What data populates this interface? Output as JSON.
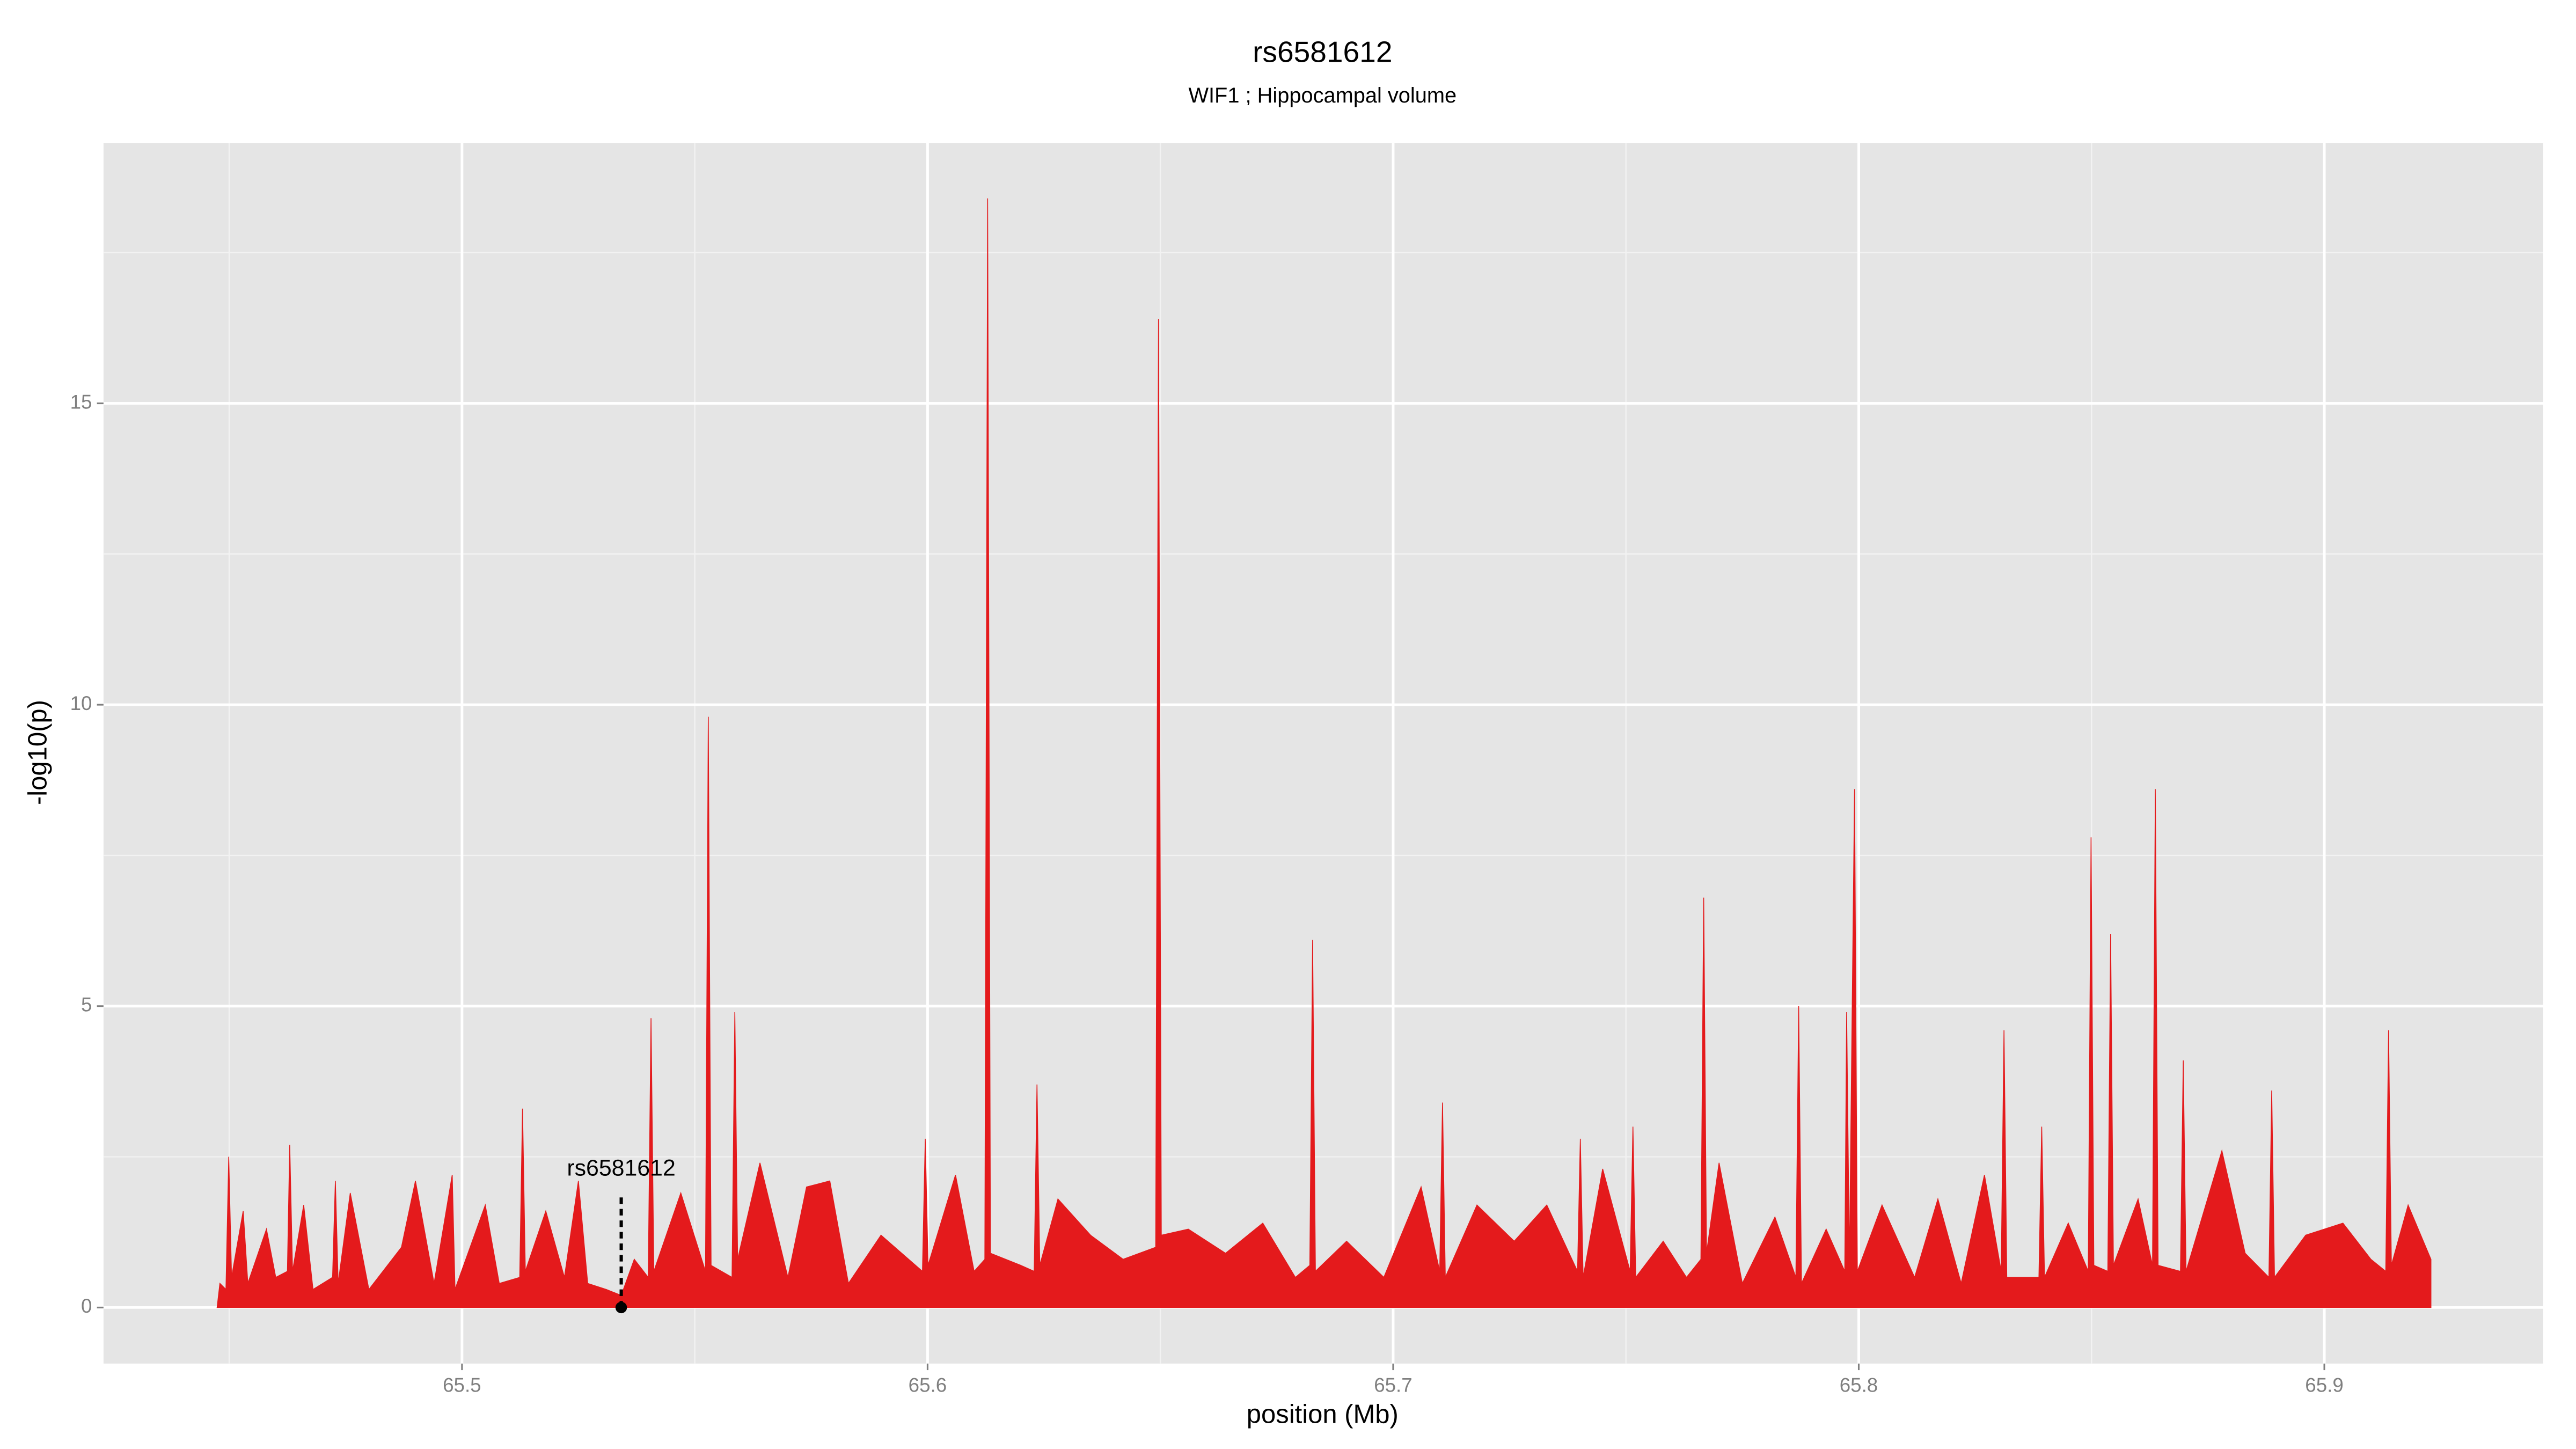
{
  "chart_data": {
    "type": "area",
    "title": "rs6581612",
    "subtitle": "WIF1 ; Hippocampal volume",
    "xlabel": "position (Mb)",
    "ylabel": "-log10(p)",
    "xlim": [
      65.423,
      65.947
    ],
    "ylim": [
      -0.93,
      19.32
    ],
    "xticks": [
      65.5,
      65.6,
      65.7,
      65.8,
      65.9
    ],
    "yticks": [
      0,
      5,
      10,
      15
    ],
    "xminor": [
      65.45,
      65.55,
      65.65,
      65.75,
      65.85
    ],
    "yminor": [
      2.5,
      7.5,
      12.5,
      17.5
    ],
    "grid": true,
    "annotation": {
      "label": "rs6581612",
      "x": 65.5342,
      "y": 0
    },
    "x": [
      65.4474,
      65.448,
      65.4493,
      65.4499,
      65.4505,
      65.453,
      65.454,
      65.458,
      65.46,
      65.4625,
      65.463,
      65.4636,
      65.466,
      65.468,
      65.4722,
      65.4728,
      65.4734,
      65.476,
      65.48,
      65.487,
      65.49,
      65.494,
      65.4979,
      65.4985,
      65.505,
      65.508,
      65.5124,
      65.513,
      65.5136,
      65.518,
      65.522,
      65.525,
      65.527,
      65.531,
      65.5342,
      65.537,
      65.54,
      65.5406,
      65.5412,
      65.547,
      65.5523,
      65.5529,
      65.5535,
      65.558,
      65.5586,
      65.5592,
      65.564,
      65.57,
      65.574,
      65.579,
      65.583,
      65.59,
      65.5989,
      65.5995,
      65.6001,
      65.606,
      65.61,
      65.6123,
      65.6129,
      65.6135,
      65.62,
      65.6229,
      65.6235,
      65.6241,
      65.628,
      65.635,
      65.642,
      65.649,
      65.6496,
      65.6502,
      65.656,
      65.664,
      65.672,
      65.679,
      65.6821,
      65.6827,
      65.6833,
      65.69,
      65.698,
      65.706,
      65.71,
      65.7106,
      65.7112,
      65.718,
      65.726,
      65.733,
      65.7396,
      65.7402,
      65.7408,
      65.745,
      65.7509,
      65.7515,
      65.7521,
      65.758,
      65.763,
      65.7661,
      65.7667,
      65.7673,
      65.77,
      65.775,
      65.782,
      65.7865,
      65.7871,
      65.7877,
      65.793,
      65.797,
      65.7974,
      65.798,
      65.7991,
      65.7997,
      65.805,
      65.812,
      65.817,
      65.822,
      65.827,
      65.8306,
      65.8312,
      65.8318,
      65.8387,
      65.8393,
      65.8399,
      65.845,
      65.8493,
      65.8499,
      65.8505,
      65.8535,
      65.8541,
      65.8547,
      65.86,
      65.8631,
      65.8637,
      65.8643,
      65.8691,
      65.8697,
      65.8703,
      65.878,
      65.883,
      65.8881,
      65.8887,
      65.8893,
      65.896,
      65.904,
      65.91,
      65.9132,
      65.9138,
      65.9144,
      65.918,
      65.9229
    ],
    "series": [
      {
        "color": "#e41a1c",
        "values": [
          0,
          0.4,
          0.3,
          2.5,
          0.5,
          1.6,
          0.4,
          1.3,
          0.5,
          0.6,
          2.7,
          0.6,
          1.7,
          0.3,
          0.5,
          2.1,
          0.4,
          1.9,
          0.3,
          1.0,
          2.1,
          0.4,
          2.2,
          0.3,
          1.7,
          0.4,
          0.5,
          3.3,
          0.6,
          1.6,
          0.5,
          2.1,
          0.4,
          0.3,
          0.2,
          0.8,
          0.5,
          4.8,
          0.6,
          1.9,
          0.6,
          9.8,
          0.7,
          0.5,
          4.9,
          0.8,
          2.4,
          0.5,
          2.0,
          2.1,
          0.4,
          1.2,
          0.6,
          2.8,
          0.7,
          2.2,
          0.6,
          0.8,
          18.4,
          0.9,
          0.7,
          0.6,
          3.7,
          0.7,
          1.8,
          1.2,
          0.8,
          1.0,
          16.4,
          1.2,
          1.3,
          0.9,
          1.4,
          0.5,
          0.7,
          6.1,
          0.6,
          1.1,
          0.5,
          2.0,
          0.6,
          3.4,
          0.5,
          1.7,
          1.1,
          1.7,
          0.6,
          2.8,
          0.5,
          2.3,
          0.6,
          3.0,
          0.5,
          1.1,
          0.5,
          0.8,
          6.8,
          0.9,
          2.4,
          0.4,
          1.5,
          0.5,
          5.0,
          0.4,
          1.3,
          0.6,
          4.9,
          0.7,
          8.6,
          0.6,
          1.7,
          0.5,
          1.8,
          0.4,
          2.2,
          0.6,
          4.6,
          0.5,
          0.5,
          3.0,
          0.5,
          1.4,
          0.6,
          7.8,
          0.7,
          0.6,
          6.2,
          0.7,
          1.8,
          0.7,
          8.6,
          0.7,
          0.6,
          4.1,
          0.6,
          2.6,
          0.9,
          0.5,
          3.6,
          0.5,
          1.2,
          1.4,
          0.8,
          0.6,
          4.6,
          0.7,
          1.7,
          0.8
        ]
      }
    ]
  }
}
